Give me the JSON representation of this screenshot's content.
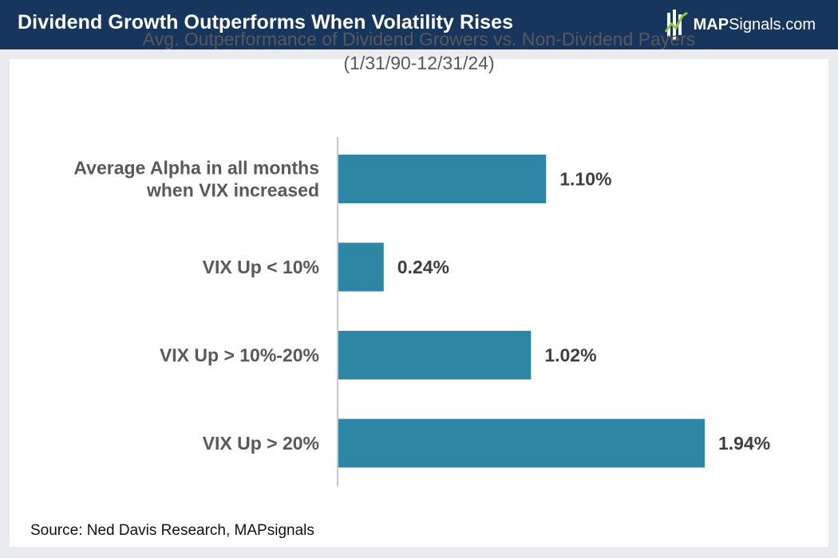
{
  "header": {
    "title": "Dividend Growth Outperforms When Volatility Rises",
    "brand_bold": "MAP",
    "brand_regular": "Signals.com",
    "background_color": "#17365d"
  },
  "chart_data": {
    "type": "bar",
    "orientation": "horizontal",
    "title": "Avg. Outperformance of Dividend Growers vs. Non-Dividend Payers",
    "subtitle": "(1/31/90-12/31/24)",
    "categories": [
      [
        "Average Alpha in all months",
        "when VIX increased"
      ],
      [
        "VIX Up < 10%"
      ],
      [
        "VIX Up > 10%-20%"
      ],
      [
        "VIX Up > 20%"
      ]
    ],
    "values": [
      1.1,
      0.24,
      1.02,
      1.94
    ],
    "value_labels": [
      "1.10%",
      "0.24%",
      "1.02%",
      "1.94%"
    ],
    "unit": "%",
    "xlim": [
      0,
      2.2
    ],
    "bar_color": "#2e86a5",
    "grid": false,
    "legend": "none"
  },
  "source": "Source: Ned Davis Research, MAPsignals"
}
